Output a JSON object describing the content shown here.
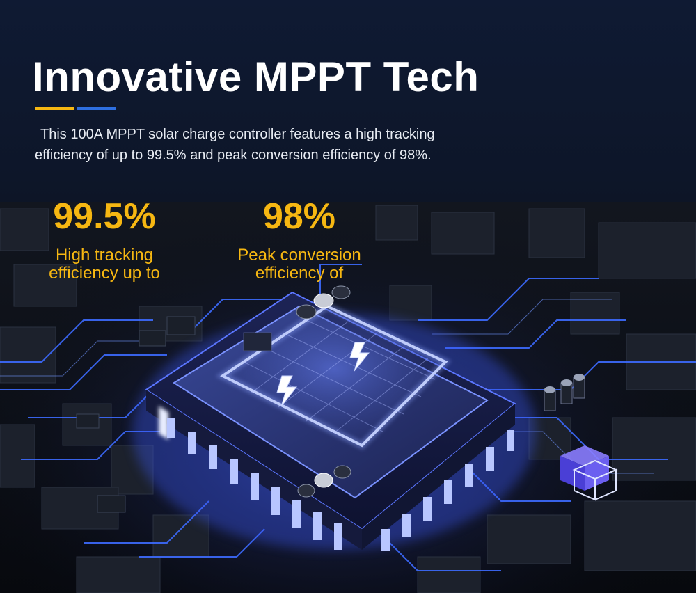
{
  "header": {
    "title": "Innovative MPPT Tech",
    "accent_colors": [
      "#f6b712",
      "#2e6fe0"
    ]
  },
  "description": {
    "line1": "This 100A MPPT solar charge controller features a high tracking",
    "line2": "efficiency of up to 99.5% and peak conversion efficiency of 98%."
  },
  "stats": [
    {
      "value": "99.5%",
      "label_line1": "High tracking",
      "label_line2": "efficiency up to"
    },
    {
      "value": "98%",
      "label_line1": "Peak conversion",
      "label_line2": "efficiency of"
    }
  ],
  "image": {
    "subject": "chip-on-circuit-board",
    "glow_color": "#3d5bff",
    "icon": "lightning-bolt-icon"
  }
}
